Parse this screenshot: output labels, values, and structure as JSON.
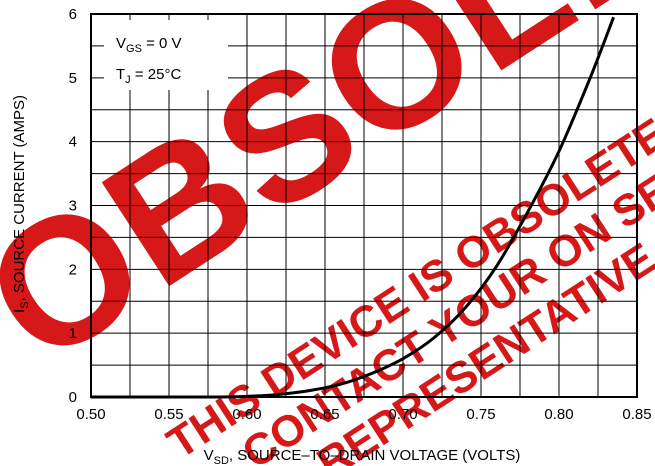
{
  "chart_data": {
    "type": "line",
    "title": "",
    "xlabel": {
      "main": "V",
      "sub": "SD",
      "rest": ", SOURCE–TO–DRAIN VOLTAGE (VOLTS)"
    },
    "ylabel": {
      "main": "I",
      "sub": "S",
      "rest": ", SOURCE CURRENT (AMPS)"
    },
    "xlim": [
      0.5,
      0.85
    ],
    "ylim": [
      0,
      6
    ],
    "x_ticks": [
      "0.50",
      "0.55",
      "0.60",
      "0.65",
      "0.70",
      "0.75",
      "0.80",
      "0.85"
    ],
    "y_ticks": [
      "0",
      "1",
      "2",
      "3",
      "4",
      "5",
      "6"
    ],
    "grid": true,
    "legend_placement": "top-left",
    "conditions": [
      {
        "main": "V",
        "sub": "GS",
        "rest": " = 0 V"
      },
      {
        "main": "T",
        "sub": "J",
        "rest": " = 25°C"
      }
    ],
    "series": [
      {
        "x": [
          0.5,
          0.55,
          0.58,
          0.6,
          0.62,
          0.64,
          0.66,
          0.68,
          0.7,
          0.72,
          0.74,
          0.76,
          0.78,
          0.8,
          0.82,
          0.835
        ],
        "y": [
          0.0,
          0.0,
          0.0,
          0.01,
          0.04,
          0.1,
          0.2,
          0.37,
          0.6,
          0.93,
          1.4,
          2.05,
          2.9,
          3.85,
          5.0,
          5.95
        ]
      }
    ],
    "line_color": "#000000"
  },
  "watermark": {
    "big": "OBSOLETE",
    "lines": [
      "THIS DEVICE IS OBSOLETE",
      "CONTACT YOUR ON SEMICONDUCTOR",
      "REPRESENTATIVE FOR INFORMATION"
    ],
    "color": "#d20000"
  }
}
